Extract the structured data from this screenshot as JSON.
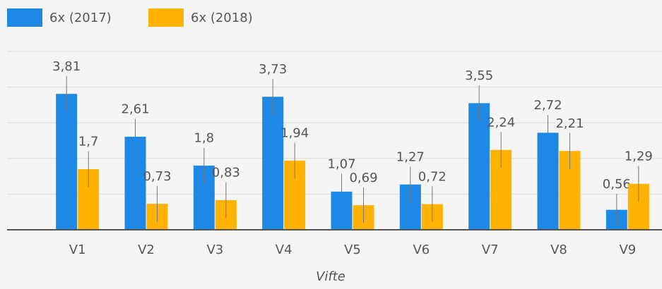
{
  "chart_data": {
    "type": "bar",
    "x_label": "Vifte",
    "categories": [
      "V1",
      "V2",
      "V3",
      "V4",
      "V5",
      "V6",
      "V7",
      "V8",
      "V9"
    ],
    "series": [
      {
        "name": "6x (2017)",
        "color": "#1e88e5",
        "values": [
          3.81,
          2.61,
          1.8,
          3.73,
          1.07,
          1.27,
          3.55,
          2.72,
          0.56
        ],
        "value_labels": [
          "3,81",
          "2,61",
          "1,8",
          "3,73",
          "1,07",
          "1,27",
          "3,55",
          "2,72",
          "0,56"
        ],
        "errors": [
          0.5,
          0.5,
          0.5,
          0.5,
          0.5,
          0.5,
          0.5,
          0.5,
          0.45
        ]
      },
      {
        "name": "6x (2018)",
        "color": "#ffb300",
        "values": [
          1.7,
          0.73,
          0.83,
          1.94,
          0.69,
          0.72,
          2.24,
          2.21,
          1.29
        ],
        "value_labels": [
          "1,7",
          "0,73",
          "0,83",
          "1,94",
          "0,69",
          "0,72",
          "2,24",
          "2,21",
          "1,29"
        ],
        "errors": [
          0.5,
          0.5,
          0.5,
          0.5,
          0.5,
          0.5,
          0.5,
          0.5,
          0.5
        ]
      }
    ],
    "ylim": [
      0,
      5
    ],
    "yticks": [
      0,
      1,
      2,
      3,
      4,
      5
    ],
    "grid": true
  }
}
